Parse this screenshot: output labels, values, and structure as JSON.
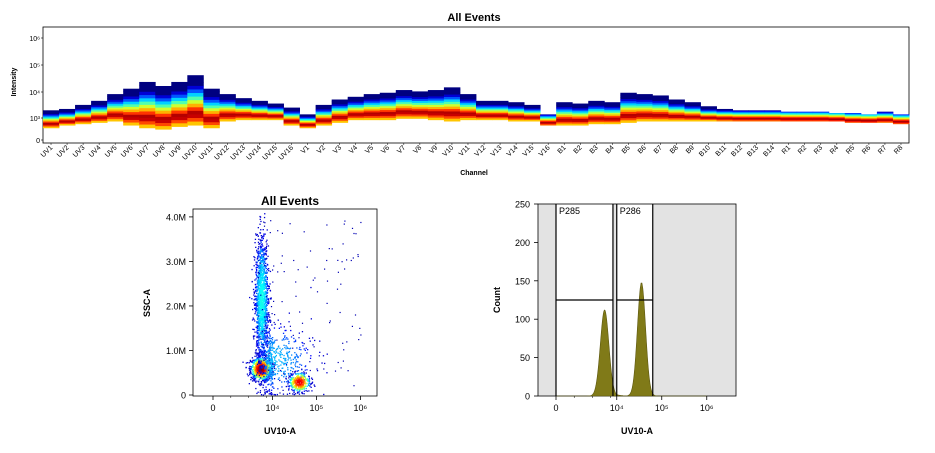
{
  "chart_data": [
    {
      "type": "heatmap",
      "title": "All Events",
      "xlabel": "Channel",
      "ylabel": "Intensity",
      "y_scale": "log",
      "y_ticks": [
        "0",
        "10³",
        "10⁴",
        "10⁵",
        "10⁶"
      ],
      "categories": [
        "UV1",
        "UV2",
        "UV3",
        "UV4",
        "UV5",
        "UV6",
        "UV7",
        "UV8",
        "UV9",
        "UV10",
        "UV11",
        "UV12",
        "UV13",
        "UV14",
        "UV15",
        "UV16",
        "V1",
        "V2",
        "V3",
        "V4",
        "V5",
        "V6",
        "V7",
        "V8",
        "V9",
        "V10",
        "V11",
        "V12",
        "V13",
        "V14",
        "V15",
        "V16",
        "B1",
        "B2",
        "B3",
        "B4",
        "B5",
        "B6",
        "B7",
        "B8",
        "B9",
        "B10",
        "B11",
        "B12",
        "B13",
        "B14",
        "R1",
        "R2",
        "R3",
        "R4",
        "R5",
        "R6",
        "R7",
        "R8"
      ],
      "peak_intensity_log10": [
        3.15,
        3.2,
        3.35,
        3.5,
        3.75,
        3.95,
        4.2,
        4.05,
        4.2,
        4.45,
        3.95,
        3.75,
        3.6,
        3.5,
        3.4,
        3.25,
        3.0,
        3.35,
        3.55,
        3.65,
        3.75,
        3.8,
        3.9,
        3.85,
        3.9,
        4.0,
        3.75,
        3.5,
        3.5,
        3.45,
        3.35,
        3.0,
        3.45,
        3.4,
        3.5,
        3.45,
        3.8,
        3.75,
        3.7,
        3.55,
        3.45,
        3.3,
        3.2,
        3.15,
        3.15,
        3.15,
        3.1,
        3.1,
        3.1,
        3.05,
        3.05,
        3.0,
        3.1,
        3.0
      ],
      "low_intensity_log10": [
        2.5,
        2.6,
        2.65,
        2.7,
        2.75,
        2.6,
        2.5,
        2.45,
        2.55,
        2.6,
        2.5,
        2.75,
        2.8,
        2.8,
        2.8,
        2.6,
        2.5,
        2.6,
        2.7,
        2.8,
        2.8,
        2.8,
        2.85,
        2.85,
        2.8,
        2.75,
        2.8,
        2.8,
        2.8,
        2.75,
        2.75,
        2.6,
        2.6,
        2.6,
        2.65,
        2.65,
        2.7,
        2.75,
        2.75,
        2.75,
        2.75,
        2.75,
        2.75,
        2.75,
        2.75,
        2.75,
        2.75,
        2.75,
        2.75,
        2.75,
        2.7,
        2.7,
        2.7,
        2.65
      ]
    },
    {
      "type": "scatter",
      "title": "All Events",
      "xlabel": "UV10-A",
      "ylabel": "SSC-A",
      "x_scale": "biexponential",
      "x_ticks": [
        "0",
        "10⁴",
        "10⁵",
        "10⁶"
      ],
      "y_ticks": [
        "0",
        "1.0M",
        "2.0M",
        "3.0M",
        "4.0M"
      ],
      "ylim": [
        0,
        4200000
      ],
      "populations": [
        {
          "center_x_log10": 3.2,
          "center_y": 600000,
          "spread": "dense core near origin"
        },
        {
          "center_x_log10": 3.25,
          "center_y": 2000000,
          "spread": "vertical streak up to 4.0M"
        },
        {
          "center_x_log10": 4.0,
          "center_y": 800000,
          "spread": "diffuse cloud"
        },
        {
          "center_x_log10": 4.6,
          "center_y": 300000,
          "spread": "compact cluster"
        }
      ]
    },
    {
      "type": "histogram",
      "title": "",
      "xlabel": "UV10-A",
      "ylabel": "Count",
      "x_scale": "biexponential",
      "x_ticks": [
        "0",
        "10⁴",
        "10⁵",
        "10⁶"
      ],
      "y_ticks": [
        "0",
        "50",
        "100",
        "150",
        "200",
        "250"
      ],
      "ylim": [
        0,
        250
      ],
      "peaks": [
        {
          "center_x_log10": 3.2,
          "count": 112
        },
        {
          "center_x_log10": 4.55,
          "count": 148
        }
      ],
      "gates": [
        {
          "name": "P285",
          "x_from_log10": 0,
          "x_to_log10": 3.75,
          "marker_count": 125
        },
        {
          "name": "P286",
          "x_from_log10": 4.0,
          "x_to_log10": 4.8,
          "marker_count": 125
        }
      ],
      "fill_color": "#807a18"
    }
  ]
}
